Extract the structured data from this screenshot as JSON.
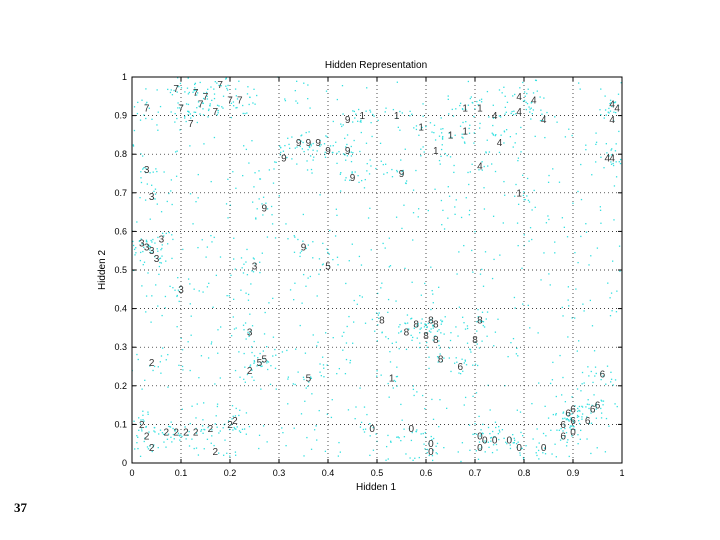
{
  "slide_number": "37",
  "chart_data": {
    "type": "scatter",
    "title": "Hidden Representation",
    "xlabel": "Hidden 1",
    "ylabel": "Hidden 2",
    "xlim": [
      0,
      1
    ],
    "ylim": [
      0,
      1
    ],
    "grid": true,
    "x_ticks": [
      "0",
      "0.1",
      "0.2",
      "0.3",
      "0.4",
      "0.5",
      "0.6",
      "0.7",
      "0.8",
      "0.9",
      "1"
    ],
    "y_ticks": [
      "0",
      "0.1",
      "0.2",
      "0.3",
      "0.4",
      "0.5",
      "0.6",
      "0.7",
      "0.8",
      "0.9",
      "1"
    ],
    "background_point_color": "#33e0e0",
    "series": [
      {
        "label_glyph": "7",
        "points": [
          [
            0.09,
            0.97
          ],
          [
            0.13,
            0.96
          ],
          [
            0.15,
            0.95
          ],
          [
            0.18,
            0.98
          ],
          [
            0.2,
            0.94
          ],
          [
            0.22,
            0.94
          ],
          [
            0.03,
            0.92
          ],
          [
            0.1,
            0.92
          ],
          [
            0.14,
            0.93
          ],
          [
            0.12,
            0.88
          ],
          [
            0.17,
            0.91
          ]
        ]
      },
      {
        "label_glyph": "9",
        "points": [
          [
            0.44,
            0.89
          ],
          [
            0.34,
            0.83
          ],
          [
            0.36,
            0.83
          ],
          [
            0.38,
            0.83
          ],
          [
            0.4,
            0.81
          ],
          [
            0.44,
            0.81
          ],
          [
            0.31,
            0.79
          ],
          [
            0.45,
            0.74
          ],
          [
            0.55,
            0.75
          ],
          [
            0.27,
            0.66
          ],
          [
            0.35,
            0.56
          ]
        ]
      },
      {
        "label_glyph": "1",
        "points": [
          [
            0.47,
            0.9
          ],
          [
            0.54,
            0.9
          ],
          [
            0.59,
            0.87
          ],
          [
            0.68,
            0.92
          ],
          [
            0.71,
            0.92
          ],
          [
            0.65,
            0.85
          ],
          [
            0.68,
            0.86
          ],
          [
            0.62,
            0.81
          ],
          [
            0.79,
            0.7
          ],
          [
            0.53,
            0.22
          ]
        ]
      },
      {
        "label_glyph": "4",
        "points": [
          [
            0.79,
            0.95
          ],
          [
            0.82,
            0.94
          ],
          [
            0.79,
            0.91
          ],
          [
            0.74,
            0.9
          ],
          [
            0.84,
            0.89
          ],
          [
            0.98,
            0.93
          ],
          [
            0.99,
            0.92
          ],
          [
            0.98,
            0.89
          ],
          [
            0.75,
            0.83
          ],
          [
            0.71,
            0.77
          ],
          [
            0.97,
            0.79
          ],
          [
            0.98,
            0.79
          ]
        ]
      },
      {
        "label_glyph": "3",
        "points": [
          [
            0.03,
            0.76
          ],
          [
            0.04,
            0.69
          ],
          [
            0.06,
            0.58
          ],
          [
            0.02,
            0.57
          ],
          [
            0.03,
            0.56
          ],
          [
            0.04,
            0.55
          ],
          [
            0.05,
            0.53
          ],
          [
            0.1,
            0.45
          ],
          [
            0.24,
            0.34
          ],
          [
            0.25,
            0.51
          ]
        ]
      },
      {
        "label_glyph": "5",
        "points": [
          [
            0.4,
            0.51
          ],
          [
            0.26,
            0.26
          ],
          [
            0.27,
            0.27
          ],
          [
            0.36,
            0.22
          ]
        ]
      },
      {
        "label_glyph": "2",
        "points": [
          [
            0.04,
            0.26
          ],
          [
            0.02,
            0.1
          ],
          [
            0.03,
            0.07
          ],
          [
            0.04,
            0.04
          ],
          [
            0.07,
            0.08
          ],
          [
            0.09,
            0.08
          ],
          [
            0.11,
            0.08
          ],
          [
            0.13,
            0.08
          ],
          [
            0.16,
            0.09
          ],
          [
            0.2,
            0.1
          ],
          [
            0.21,
            0.11
          ],
          [
            0.17,
            0.03
          ],
          [
            0.24,
            0.24
          ]
        ]
      },
      {
        "label_glyph": "8",
        "points": [
          [
            0.51,
            0.37
          ],
          [
            0.58,
            0.36
          ],
          [
            0.61,
            0.37
          ],
          [
            0.62,
            0.36
          ],
          [
            0.56,
            0.34
          ],
          [
            0.6,
            0.33
          ],
          [
            0.62,
            0.32
          ],
          [
            0.71,
            0.37
          ],
          [
            0.7,
            0.32
          ],
          [
            0.63,
            0.27
          ]
        ]
      },
      {
        "label_glyph": "6",
        "points": [
          [
            0.67,
            0.25
          ],
          [
            0.96,
            0.23
          ],
          [
            0.89,
            0.13
          ],
          [
            0.9,
            0.14
          ],
          [
            0.94,
            0.14
          ],
          [
            0.95,
            0.15
          ],
          [
            0.88,
            0.1
          ],
          [
            0.9,
            0.11
          ],
          [
            0.93,
            0.11
          ],
          [
            0.88,
            0.07
          ]
        ]
      },
      {
        "label_glyph": "0",
        "points": [
          [
            0.49,
            0.09
          ],
          [
            0.57,
            0.09
          ],
          [
            0.61,
            0.05
          ],
          [
            0.61,
            0.03
          ],
          [
            0.71,
            0.07
          ],
          [
            0.72,
            0.06
          ],
          [
            0.74,
            0.06
          ],
          [
            0.77,
            0.06
          ],
          [
            0.71,
            0.04
          ],
          [
            0.79,
            0.04
          ],
          [
            0.84,
            0.04
          ],
          [
            0.9,
            0.08
          ]
        ]
      }
    ]
  }
}
